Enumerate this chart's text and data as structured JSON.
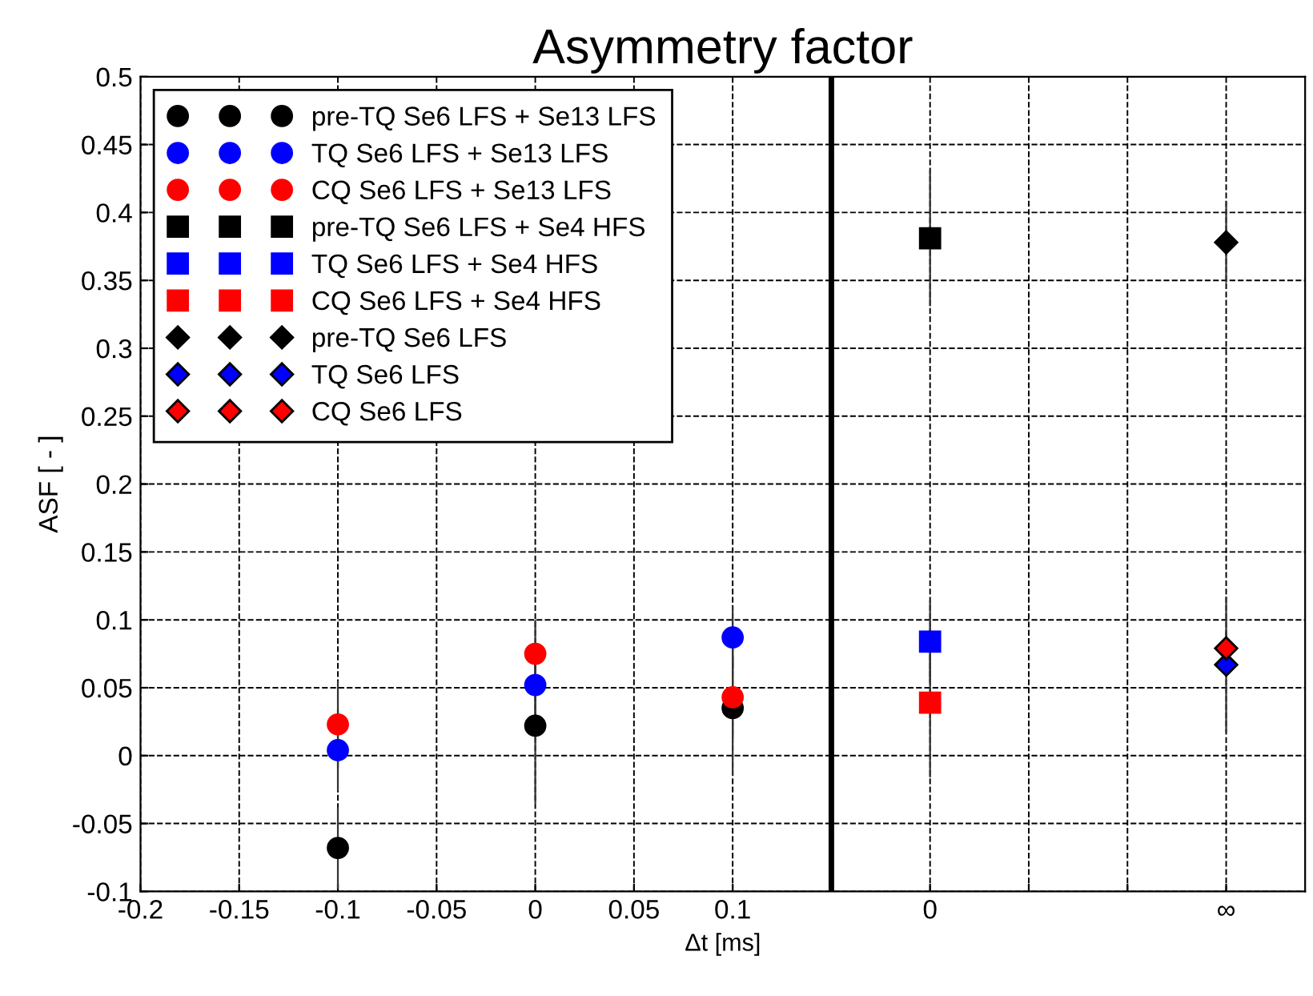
{
  "chart_data": {
    "type": "scatter",
    "title": "Asymmetry factor",
    "xlabel": "Δt [ms]",
    "ylabel": "ASF [ - ]",
    "xlim": [
      -0.2,
      0.39
    ],
    "ylim": [
      -0.1,
      0.5
    ],
    "xticks": [
      -0.2,
      -0.15,
      -0.1,
      -0.05,
      0,
      0.05,
      0.1,
      {
        "value": 0.15,
        "label": null
      },
      {
        "value": 0.2,
        "label": "0"
      },
      {
        "value": 0.25,
        "label": null
      },
      {
        "value": 0.3,
        "label": null
      },
      {
        "value": 0.35,
        "label": "∞"
      }
    ],
    "yticks": [
      -0.1,
      -0.05,
      0,
      0.05,
      0.1,
      0.15,
      0.2,
      0.25,
      0.3,
      0.35,
      0.4,
      0.45,
      0.5
    ],
    "grid": true,
    "legend": "top left",
    "ref_lines": [
      {
        "axis": "x",
        "value": 0.15,
        "color": "#000000",
        "line_style": "solid"
      }
    ],
    "series": [
      {
        "name": "pre-TQ Se6 LFS + Se13 LFS",
        "color": "#000000",
        "marker": "circle",
        "x": [
          -0.1,
          0,
          0.1
        ],
        "values": [
          -0.068,
          0.022,
          0.035
        ],
        "errors": [
          0.03,
          0.057,
          0.05
        ]
      },
      {
        "name": "TQ Se6 LFS + Se13 LFS",
        "color": "#0000ff",
        "marker": "circle",
        "x": [
          -0.1,
          0,
          0.1
        ],
        "values": [
          0.004,
          0.052,
          0.087
        ],
        "errors": [
          0.03,
          0.03,
          0.023
        ]
      },
      {
        "name": "CQ Se6 LFS + Se13 LFS",
        "color": "#ff0000",
        "marker": "circle",
        "x": [
          -0.1,
          0,
          0.1
        ],
        "values": [
          0.023,
          0.075,
          0.043
        ],
        "errors": [
          0.032,
          0.025,
          0.03
        ]
      },
      {
        "name": "pre-TQ Se6 LFS + Se4 HFS",
        "color": "#000000",
        "marker": "square",
        "x": [
          0.2
        ],
        "values": [
          0.381
        ],
        "errors": [
          0.05
        ]
      },
      {
        "name": "TQ Se6 LFS + Se4 HFS",
        "color": "#0000ff",
        "marker": "square",
        "x": [
          0.2
        ],
        "values": [
          0.084
        ],
        "errors": [
          0.03
        ]
      },
      {
        "name": "CQ Se6 LFS + Se4 HFS",
        "color": "#ff0000",
        "marker": "square",
        "x": [
          0.2
        ],
        "values": [
          0.039
        ],
        "errors": [
          0.055
        ]
      },
      {
        "name": "pre-TQ Se6 LFS",
        "color": "#000000",
        "marker": "diamond",
        "x": [
          0.35
        ],
        "values": [
          0.378
        ],
        "errors": [
          0.03
        ]
      },
      {
        "name": "TQ Se6 LFS",
        "color": "#0000ff",
        "marker": "diamond",
        "x": [
          0.35
        ],
        "values": [
          0.067
        ],
        "errors": [
          0.05
        ]
      },
      {
        "name": "CQ Se6 LFS",
        "color": "#ff0000",
        "marker": "diamond",
        "x": [
          0.35
        ],
        "values": [
          0.079
        ],
        "errors": [
          0.012
        ]
      }
    ]
  }
}
